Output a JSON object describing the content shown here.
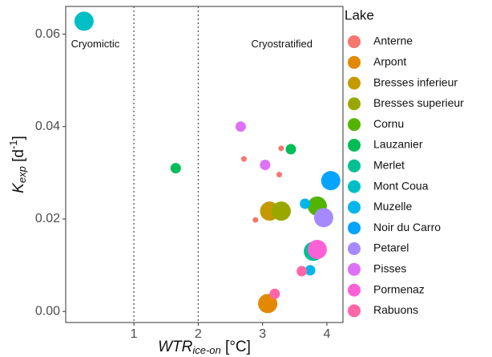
{
  "chart_data": {
    "type": "scatter",
    "xlabel": [
      "WTR",
      "ice-on",
      " [°C]"
    ],
    "ylabel": [
      "K",
      "exp",
      " [d",
      "-1",
      "]"
    ],
    "legend_title": "Lake",
    "annotations": [
      {
        "text": "Cryomictic",
        "x": 0.4,
        "y": 0.0577
      },
      {
        "text": "Cryostratified",
        "x": 3.3,
        "y": 0.0577
      }
    ],
    "vlines": [
      1,
      2
    ],
    "xlim": [
      -0.06,
      4.25
    ],
    "xticks": [
      1,
      2,
      3,
      4
    ],
    "ylim": [
      -0.0024,
      0.066
    ],
    "yticks": [
      {
        "value": 0,
        "label": "0.00"
      },
      {
        "value": 0.02,
        "label": "0.02"
      },
      {
        "value": 0.04,
        "label": "0.04"
      },
      {
        "value": 0.06,
        "label": "0.06"
      }
    ],
    "series": [
      {
        "name": "Anterne",
        "color": "#F8766D",
        "x": [
          2.71,
          3.29,
          3.26,
          2.89
        ],
        "values": [
          0.033,
          0.0353,
          0.0296,
          0.0198
        ],
        "sizes": [
          1,
          1,
          1,
          1
        ]
      },
      {
        "name": "Arpont",
        "color": "#E38900",
        "x": [
          3.08
        ],
        "values": [
          0.0017
        ],
        "sizes": [
          3
        ]
      },
      {
        "name": "Bresses inferieur",
        "color": "#C49A00",
        "x": [
          3.11
        ],
        "values": [
          0.0217
        ],
        "sizes": [
          3
        ]
      },
      {
        "name": "Bresses superieur",
        "color": "#99A800",
        "x": [
          3.29
        ],
        "values": [
          0.0217
        ],
        "sizes": [
          3
        ]
      },
      {
        "name": "Cornu",
        "color": "#53B400",
        "x": [
          3.85
        ],
        "values": [
          0.0228
        ],
        "sizes": [
          3
        ]
      },
      {
        "name": "Lauzanier",
        "color": "#00BC56",
        "x": [
          1.65,
          3.44
        ],
        "values": [
          0.031,
          0.0351
        ],
        "sizes": [
          2,
          2
        ]
      },
      {
        "name": "Merlet",
        "color": "#00C094",
        "x": [
          3.79
        ],
        "values": [
          0.013
        ],
        "sizes": [
          3
        ]
      },
      {
        "name": "Mont Coua",
        "color": "#00BFC4",
        "x": [
          0.225
        ],
        "values": [
          0.0628
        ],
        "sizes": [
          3
        ]
      },
      {
        "name": "Muzelle",
        "color": "#00B6EB",
        "x": [
          3.66,
          3.74
        ],
        "values": [
          0.0233,
          0.0089
        ],
        "sizes": [
          2,
          2
        ]
      },
      {
        "name": "Noir du Carro",
        "color": "#06A4FF",
        "x": [
          4.06
        ],
        "values": [
          0.0283
        ],
        "sizes": [
          3
        ]
      },
      {
        "name": "Petarel",
        "color": "#A58AFF",
        "x": [
          3.95
        ],
        "values": [
          0.0203
        ],
        "sizes": [
          3
        ]
      },
      {
        "name": "Pisses",
        "color": "#DF70F8",
        "x": [
          2.66,
          3.04
        ],
        "values": [
          0.04,
          0.0317
        ],
        "sizes": [
          2,
          2
        ]
      },
      {
        "name": "Pormenaz",
        "color": "#FB61D7",
        "x": [
          3.85
        ],
        "values": [
          0.0134
        ],
        "sizes": [
          3
        ]
      },
      {
        "name": "Rabuons",
        "color": "#FF66A8",
        "x": [
          3.61,
          3.19
        ],
        "values": [
          0.0087,
          0.0038
        ],
        "sizes": [
          2,
          2
        ]
      }
    ]
  }
}
